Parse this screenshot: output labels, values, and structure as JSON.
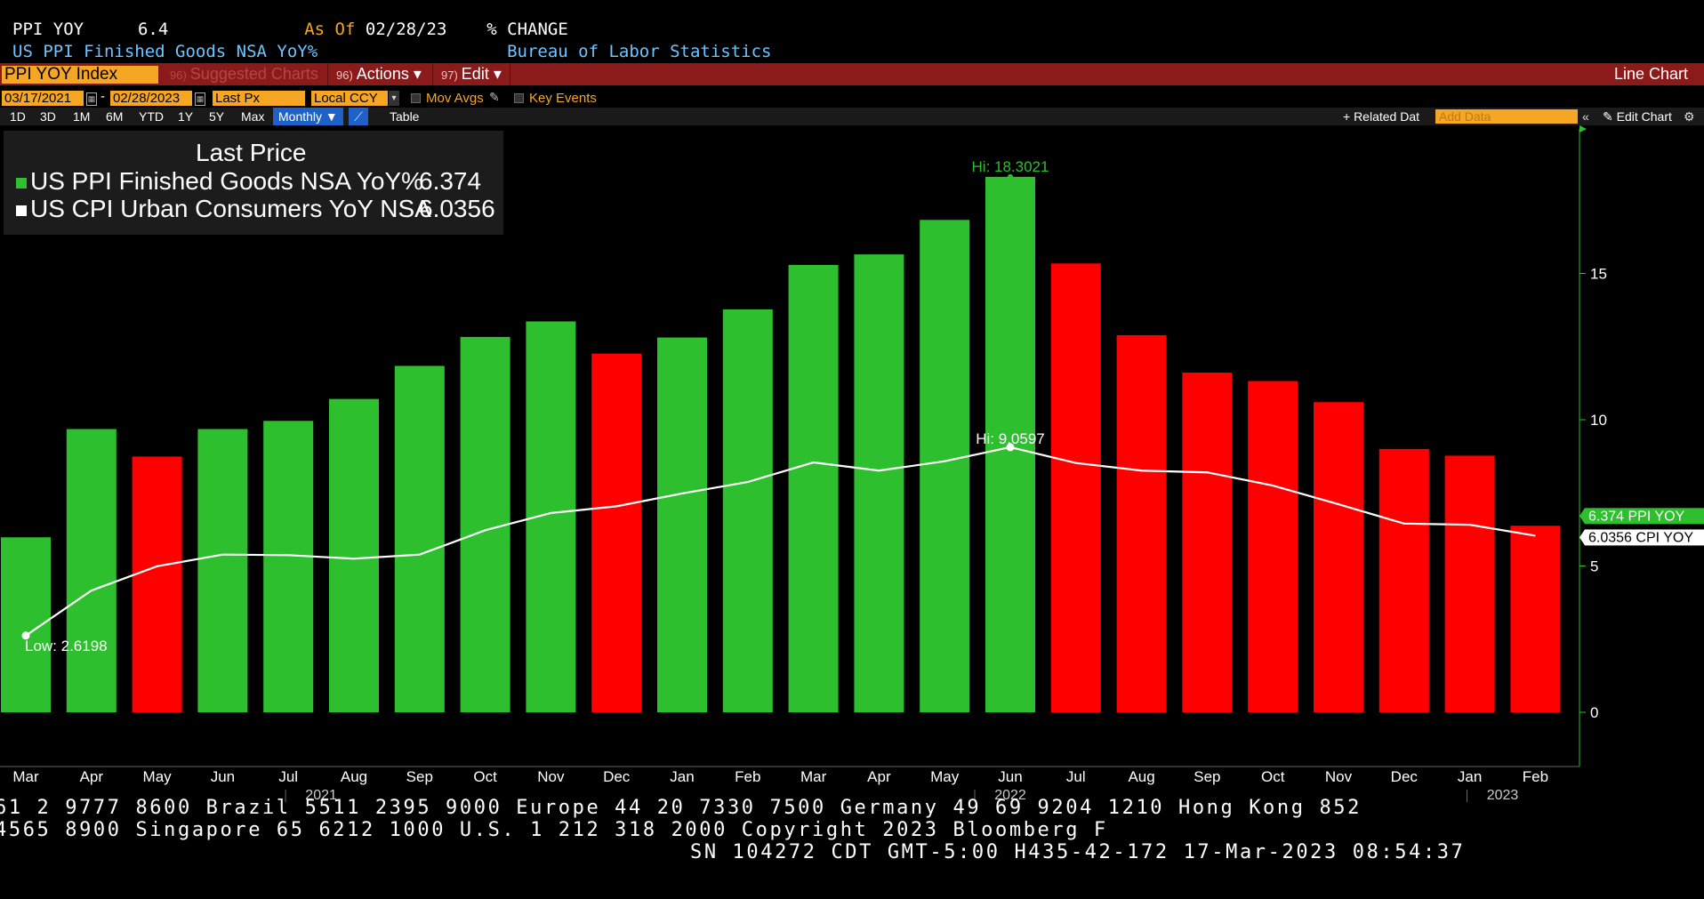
{
  "header": {
    "ticker": "PPI YOY",
    "value": "6.4",
    "as_of_label": "As Of",
    "as_of_date": "02/28/23",
    "change_label": "% CHANGE",
    "description": "US PPI Finished Goods NSA YoY%",
    "source": "Bureau of Labor Statistics"
  },
  "toolbar": {
    "ticker_input": "PPI YOY Index",
    "suggested_num": "96)",
    "suggested_label": "Suggested Charts",
    "actions_num": "96)",
    "actions_label": "Actions ▾",
    "edit_num": "97)",
    "edit_label": "Edit ▾",
    "chart_type": "Line Chart"
  },
  "settings": {
    "start_date": "03/17/2021",
    "end_date": "02/28/2023",
    "field": "Last Px",
    "currency": "Local CCY",
    "mov_avgs": "Mov Avgs",
    "key_events": "Key Events"
  },
  "ranges": {
    "items": [
      "1D",
      "3D",
      "1M",
      "6M",
      "YTD",
      "1Y",
      "5Y",
      "Max"
    ],
    "period": "Monthly ▼",
    "table": "Table",
    "related_data": "+ Related Dat",
    "add_data_placeholder": "Add Data",
    "edit_chart": "✎ Edit Chart"
  },
  "legend": {
    "title": "Last Price",
    "rows": [
      {
        "label": "US PPI Finished Goods NSA YoY%",
        "value": "6.374"
      },
      {
        "label": "US CPI Urban Consumers YoY NSA",
        "value": "6.0356"
      }
    ]
  },
  "chart_data": {
    "type": "bar",
    "categories": [
      "Mar",
      "Apr",
      "May",
      "Jun",
      "Jul",
      "Aug",
      "Sep",
      "Oct",
      "Nov",
      "Dec",
      "Jan",
      "Feb",
      "Mar",
      "Apr",
      "May",
      "Jun",
      "Jul",
      "Aug",
      "Sep",
      "Oct",
      "Nov",
      "Dec",
      "Jan",
      "Feb"
    ],
    "year_labels": [
      {
        "label": "2021",
        "index": 4.5
      },
      {
        "label": "2022",
        "index": 15
      },
      {
        "label": "2023",
        "index": 22.5
      }
    ],
    "series": [
      {
        "name": "US PPI Finished Goods NSA YoY%",
        "kind": "bar",
        "values": [
          5.98,
          9.68,
          8.74,
          9.68,
          9.96,
          10.71,
          11.84,
          12.83,
          13.36,
          12.26,
          12.81,
          13.77,
          15.29,
          15.65,
          16.83,
          18.3021,
          15.34,
          12.89,
          11.61,
          11.32,
          10.6,
          9.0,
          8.77,
          6.374
        ],
        "colors": [
          "#2ebf2e",
          "#2ebf2e",
          "#ff0000",
          "#2ebf2e",
          "#2ebf2e",
          "#2ebf2e",
          "#2ebf2e",
          "#2ebf2e",
          "#2ebf2e",
          "#ff0000",
          "#2ebf2e",
          "#2ebf2e",
          "#2ebf2e",
          "#2ebf2e",
          "#2ebf2e",
          "#2ebf2e",
          "#ff0000",
          "#ff0000",
          "#ff0000",
          "#ff0000",
          "#ff0000",
          "#ff0000",
          "#ff0000",
          "#ff0000"
        ]
      },
      {
        "name": "US CPI Urban Consumers YoY NSA",
        "kind": "line",
        "color": "#ffffff",
        "values": [
          2.6198,
          4.16,
          4.99,
          5.39,
          5.37,
          5.25,
          5.39,
          6.22,
          6.81,
          7.04,
          7.48,
          7.87,
          8.54,
          8.26,
          8.58,
          9.0597,
          8.52,
          8.26,
          8.2,
          7.75,
          7.11,
          6.45,
          6.41,
          6.0356
        ]
      }
    ],
    "annotations": [
      {
        "text": "Hi: 18.3021",
        "series": 0,
        "index": 15,
        "color": "#2ebf2e"
      },
      {
        "text": "Hi: 9.0597",
        "series": 1,
        "index": 15,
        "color": "#ffffff"
      },
      {
        "text": "Low: 2.6198",
        "series": 1,
        "index": 0,
        "color": "#ffffff"
      }
    ],
    "last_value_tags": [
      {
        "text": "6.374  PPI YOY",
        "bg": "#2ebf2e",
        "color": "#ffffff"
      },
      {
        "text": "6.0356 CPI YOY",
        "bg": "#ffffff",
        "color": "#000000"
      }
    ],
    "yticks": [
      0,
      5,
      10,
      15
    ],
    "ylim": [
      -1.7,
      20
    ],
    "axis_color": "#2ebf2e"
  },
  "footer": {
    "line1": "61 2 9777 8600 Brazil 5511 2395 9000 Europe 44 20 7330 7500 Germany 49 69 9204 1210 Hong Kong 852",
    "line2": "4565 8900       Singapore 65 6212 1000       U.S. 1 212 318 2000          Copyright 2023 Bloomberg F",
    "line3": "SN 104272 CDT  GMT-5:00 H435-42-172 17-Mar-2023 08:54:37"
  }
}
